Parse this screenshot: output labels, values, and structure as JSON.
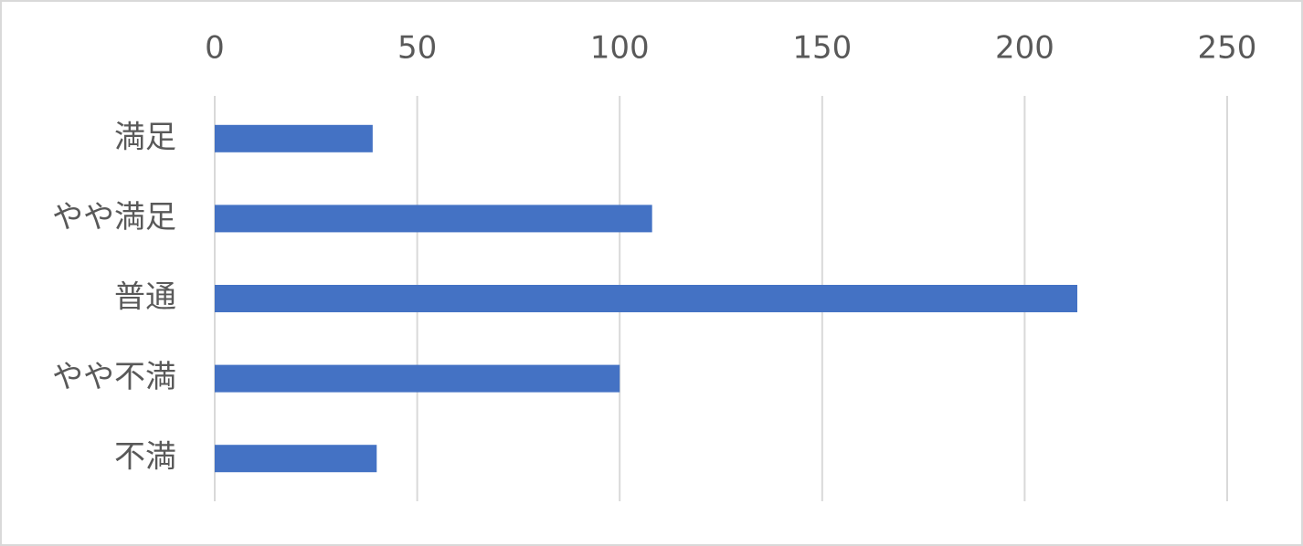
{
  "chart_data": {
    "type": "bar",
    "orientation": "horizontal",
    "categories": [
      "満足",
      "やや満足",
      "普通",
      "やや不満",
      "不満"
    ],
    "values": [
      39,
      108,
      213,
      100,
      40
    ],
    "color": "#4472c4",
    "xlim": [
      0,
      250
    ],
    "xticks": [
      0,
      50,
      100,
      150,
      200,
      250
    ],
    "grid": true
  }
}
